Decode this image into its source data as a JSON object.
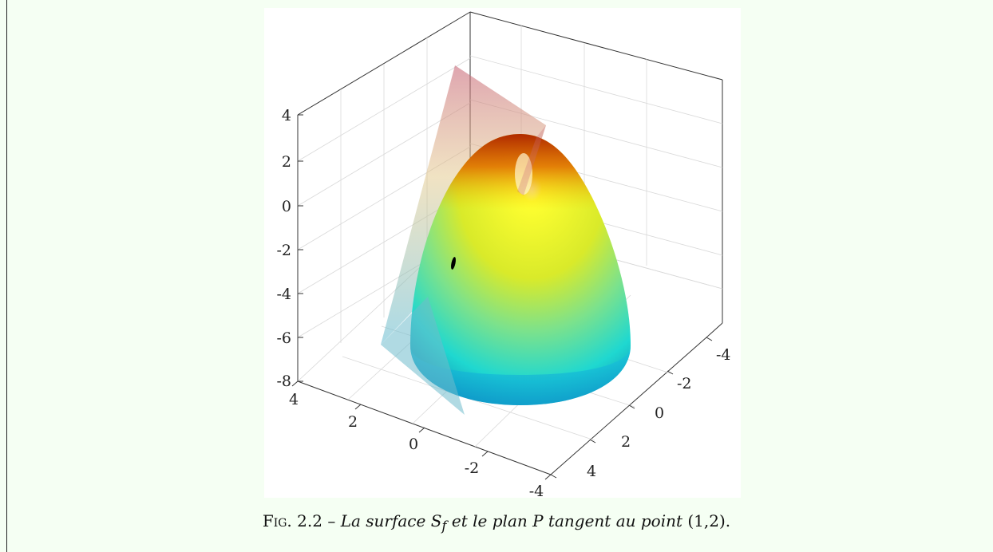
{
  "chart_data": {
    "type": "surface3d",
    "z_ticks": [
      "4",
      "2",
      "0",
      "-2",
      "-4",
      "-6",
      "-8"
    ],
    "x_ticks_front": [
      "4",
      "2",
      "0",
      "-2",
      "-4"
    ],
    "y_ticks_right": [
      "-4",
      "-2",
      "0",
      "2",
      "4"
    ],
    "zlim": [
      -8,
      4
    ],
    "xlim": [
      -4,
      4
    ],
    "ylim": [
      -4,
      4
    ],
    "surface": {
      "name": "S_f",
      "apex_z": 4,
      "base_z": -8,
      "base_radius": 3.5
    },
    "tangent_point": {
      "x": 1,
      "y": 2
    },
    "grid": true,
    "colors": {
      "surface_top": "#b02a00",
      "surface_mid": "#f2f21a",
      "surface_low": "#1fe0d8",
      "surface_base": "#0b8cd0",
      "plane_top": "#c96a72",
      "plane_bottom": "#6fbccc",
      "point": "#000000"
    }
  },
  "caption": {
    "fig_label": "Fig. 2.2",
    "separator": " – ",
    "text_start": "La surface ",
    "S": "S",
    "subscript": "f",
    "text_mid": " et le plan ",
    "P": "P",
    "text_end": " tangent au point ",
    "point": "(1,2)",
    "period": "."
  }
}
